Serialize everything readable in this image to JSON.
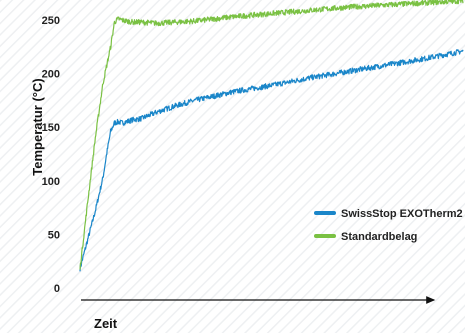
{
  "chart_data": {
    "type": "line",
    "title": "",
    "xlabel": "Zeit",
    "ylabel": "Temperatur (°C)",
    "x_axis_ticks": "none",
    "ylim": [
      0,
      250
    ],
    "yticks": [
      "0",
      "50",
      "100",
      "150",
      "200",
      "250"
    ],
    "grid": false,
    "legend_position": "right",
    "series": [
      {
        "name": "SwissStop EXOTherm2",
        "color": "#1a86c9",
        "x": [
          0,
          2,
          4,
          6,
          7,
          8,
          9,
          10,
          11,
          12,
          14,
          16,
          18,
          20,
          25,
          30,
          40,
          50,
          60,
          70,
          80,
          90,
          100
        ],
        "y": [
          18,
          45,
          72,
          103,
          126,
          146,
          154,
          155,
          154,
          155,
          157,
          158,
          161,
          164,
          170,
          175,
          183,
          189,
          196,
          202,
          208,
          214,
          221
        ]
      },
      {
        "name": "Standardbelag",
        "color": "#7ac143",
        "x": [
          0,
          2,
          4,
          6,
          8,
          9,
          10,
          11,
          12,
          14,
          16,
          20,
          25,
          30,
          40,
          50,
          60,
          70,
          80,
          90,
          100
        ],
        "y": [
          18,
          80,
          140,
          191,
          225,
          248,
          251,
          250,
          249,
          248,
          248,
          247,
          248,
          249,
          253,
          256,
          259,
          262,
          264,
          266,
          268
        ]
      }
    ]
  }
}
